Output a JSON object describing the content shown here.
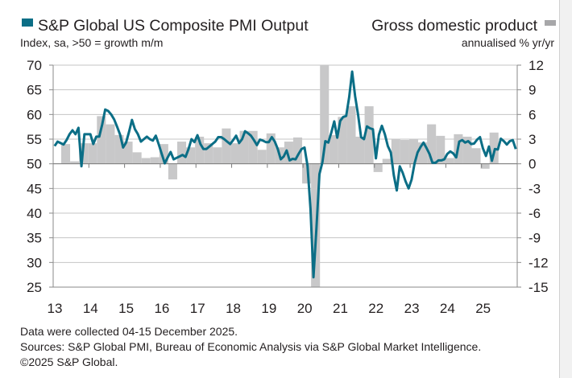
{
  "chart_data": {
    "type": "line+bar",
    "series": [
      {
        "name": "S&P Global US Composite PMI Output",
        "type": "line",
        "axis": "left",
        "color": "#0b6e86",
        "frequency": "monthly",
        "start": "2013-01",
        "values": [
          53.6,
          54.5,
          54.2,
          53.9,
          54.8,
          56.0,
          56.8,
          56.0,
          57.3,
          49.5,
          56.0,
          56.0,
          56.0,
          54.0,
          55.5,
          55.5,
          58.0,
          61.0,
          60.7,
          60.0,
          59.0,
          57.5,
          55.9,
          53.3,
          54.3,
          56.5,
          58.9,
          57.0,
          56.0,
          54.5,
          55.0,
          55.5,
          55.0,
          54.7,
          55.7,
          53.9,
          52.0,
          50.1,
          51.3,
          52.4,
          50.9,
          51.2,
          51.5,
          51.8,
          51.4,
          53.0,
          55.0,
          54.4,
          55.8,
          54.0,
          53.0,
          53.0,
          53.5,
          54.0,
          54.5,
          55.4,
          55.4,
          55.0,
          54.5,
          54.0,
          54.8,
          55.7,
          54.2,
          55.0,
          56.6,
          56.2,
          55.7,
          54.8,
          53.8,
          54.9,
          54.7,
          54.4,
          54.4,
          55.4,
          54.5,
          53.0,
          50.9,
          51.5,
          52.7,
          50.7,
          51.0,
          50.9,
          52.0,
          53.0,
          53.3,
          49.6,
          40.9,
          27.0,
          37.0,
          47.9,
          50.3,
          54.6,
          54.3,
          56.3,
          58.6,
          55.3,
          58.7,
          59.5,
          59.7,
          63.5,
          68.7,
          63.7,
          59.9,
          55.4,
          55.0,
          57.6,
          57.2,
          57.0,
          51.1,
          55.9,
          57.7,
          56.0,
          53.6,
          52.3,
          47.7,
          44.6,
          49.5,
          48.2,
          46.4,
          45.0,
          46.8,
          50.1,
          52.3,
          53.4,
          54.3,
          53.2,
          52.0,
          50.2,
          50.2,
          50.7,
          50.7,
          50.9,
          52.0,
          52.5,
          52.1,
          51.3,
          54.5,
          54.8,
          54.3,
          54.6,
          54.0,
          54.1,
          54.9,
          55.4,
          53.1,
          51.6,
          53.5,
          50.6,
          53.0,
          52.9,
          55.1,
          54.6,
          53.9,
          54.6,
          54.8,
          53.0
        ]
      },
      {
        "name": "Gross domestic product",
        "type": "bar",
        "axis": "right",
        "color": "#c8c8c9",
        "frequency": "quarterly",
        "start": "2013-Q2",
        "values": [
          2.4,
          0.3,
          2.5,
          2.5,
          5.8,
          4.8,
          3.5,
          2.7,
          1.4,
          0.7,
          0.8,
          2.4,
          -1.9,
          2.7,
          2.0,
          3.3,
          2.5,
          2.0,
          4.3,
          2.5,
          4.0,
          4.0,
          1.7,
          3.7,
          2.0,
          2.7,
          3.2,
          -2.4,
          -15,
          12,
          3.5,
          5.7,
          7.0,
          3.3,
          7.0,
          -1.0,
          0.6,
          3.0,
          2.9,
          3.0,
          2.6,
          4.8,
          3.4,
          0.7,
          3.6,
          3.3,
          1.9,
          -0.6,
          3.8
        ]
      }
    ],
    "left_axis": {
      "title": "Index, sa, >50 = growth m/m",
      "ylim": [
        25,
        70
      ],
      "ticks": [
        "70",
        "65",
        "60",
        "55",
        "50",
        "45",
        "40",
        "35",
        "30",
        "25"
      ]
    },
    "right_axis": {
      "title": "annualised % yr/yr",
      "ylim": [
        -15,
        12
      ],
      "ticks": [
        "12",
        "9",
        "6",
        "3",
        "0",
        "-3",
        "-6",
        "-9",
        "-12",
        "-15"
      ]
    },
    "x_axis": {
      "ticks": [
        "13",
        "14",
        "15",
        "16",
        "17",
        "18",
        "19",
        "20",
        "21",
        "22",
        "23",
        "24",
        "25"
      ]
    },
    "grid": true,
    "legend": {
      "left": "S&P Global US Composite PMI Output",
      "right": "Gross domestic product"
    }
  },
  "footer": {
    "line1": "Data were collected 04-15 December 2025.",
    "line2": "Sources: S&P Global PMI, Bureau of Economic Analysis via S&P Global Market Intelligence.",
    "line3": "©2025 S&P Global."
  }
}
